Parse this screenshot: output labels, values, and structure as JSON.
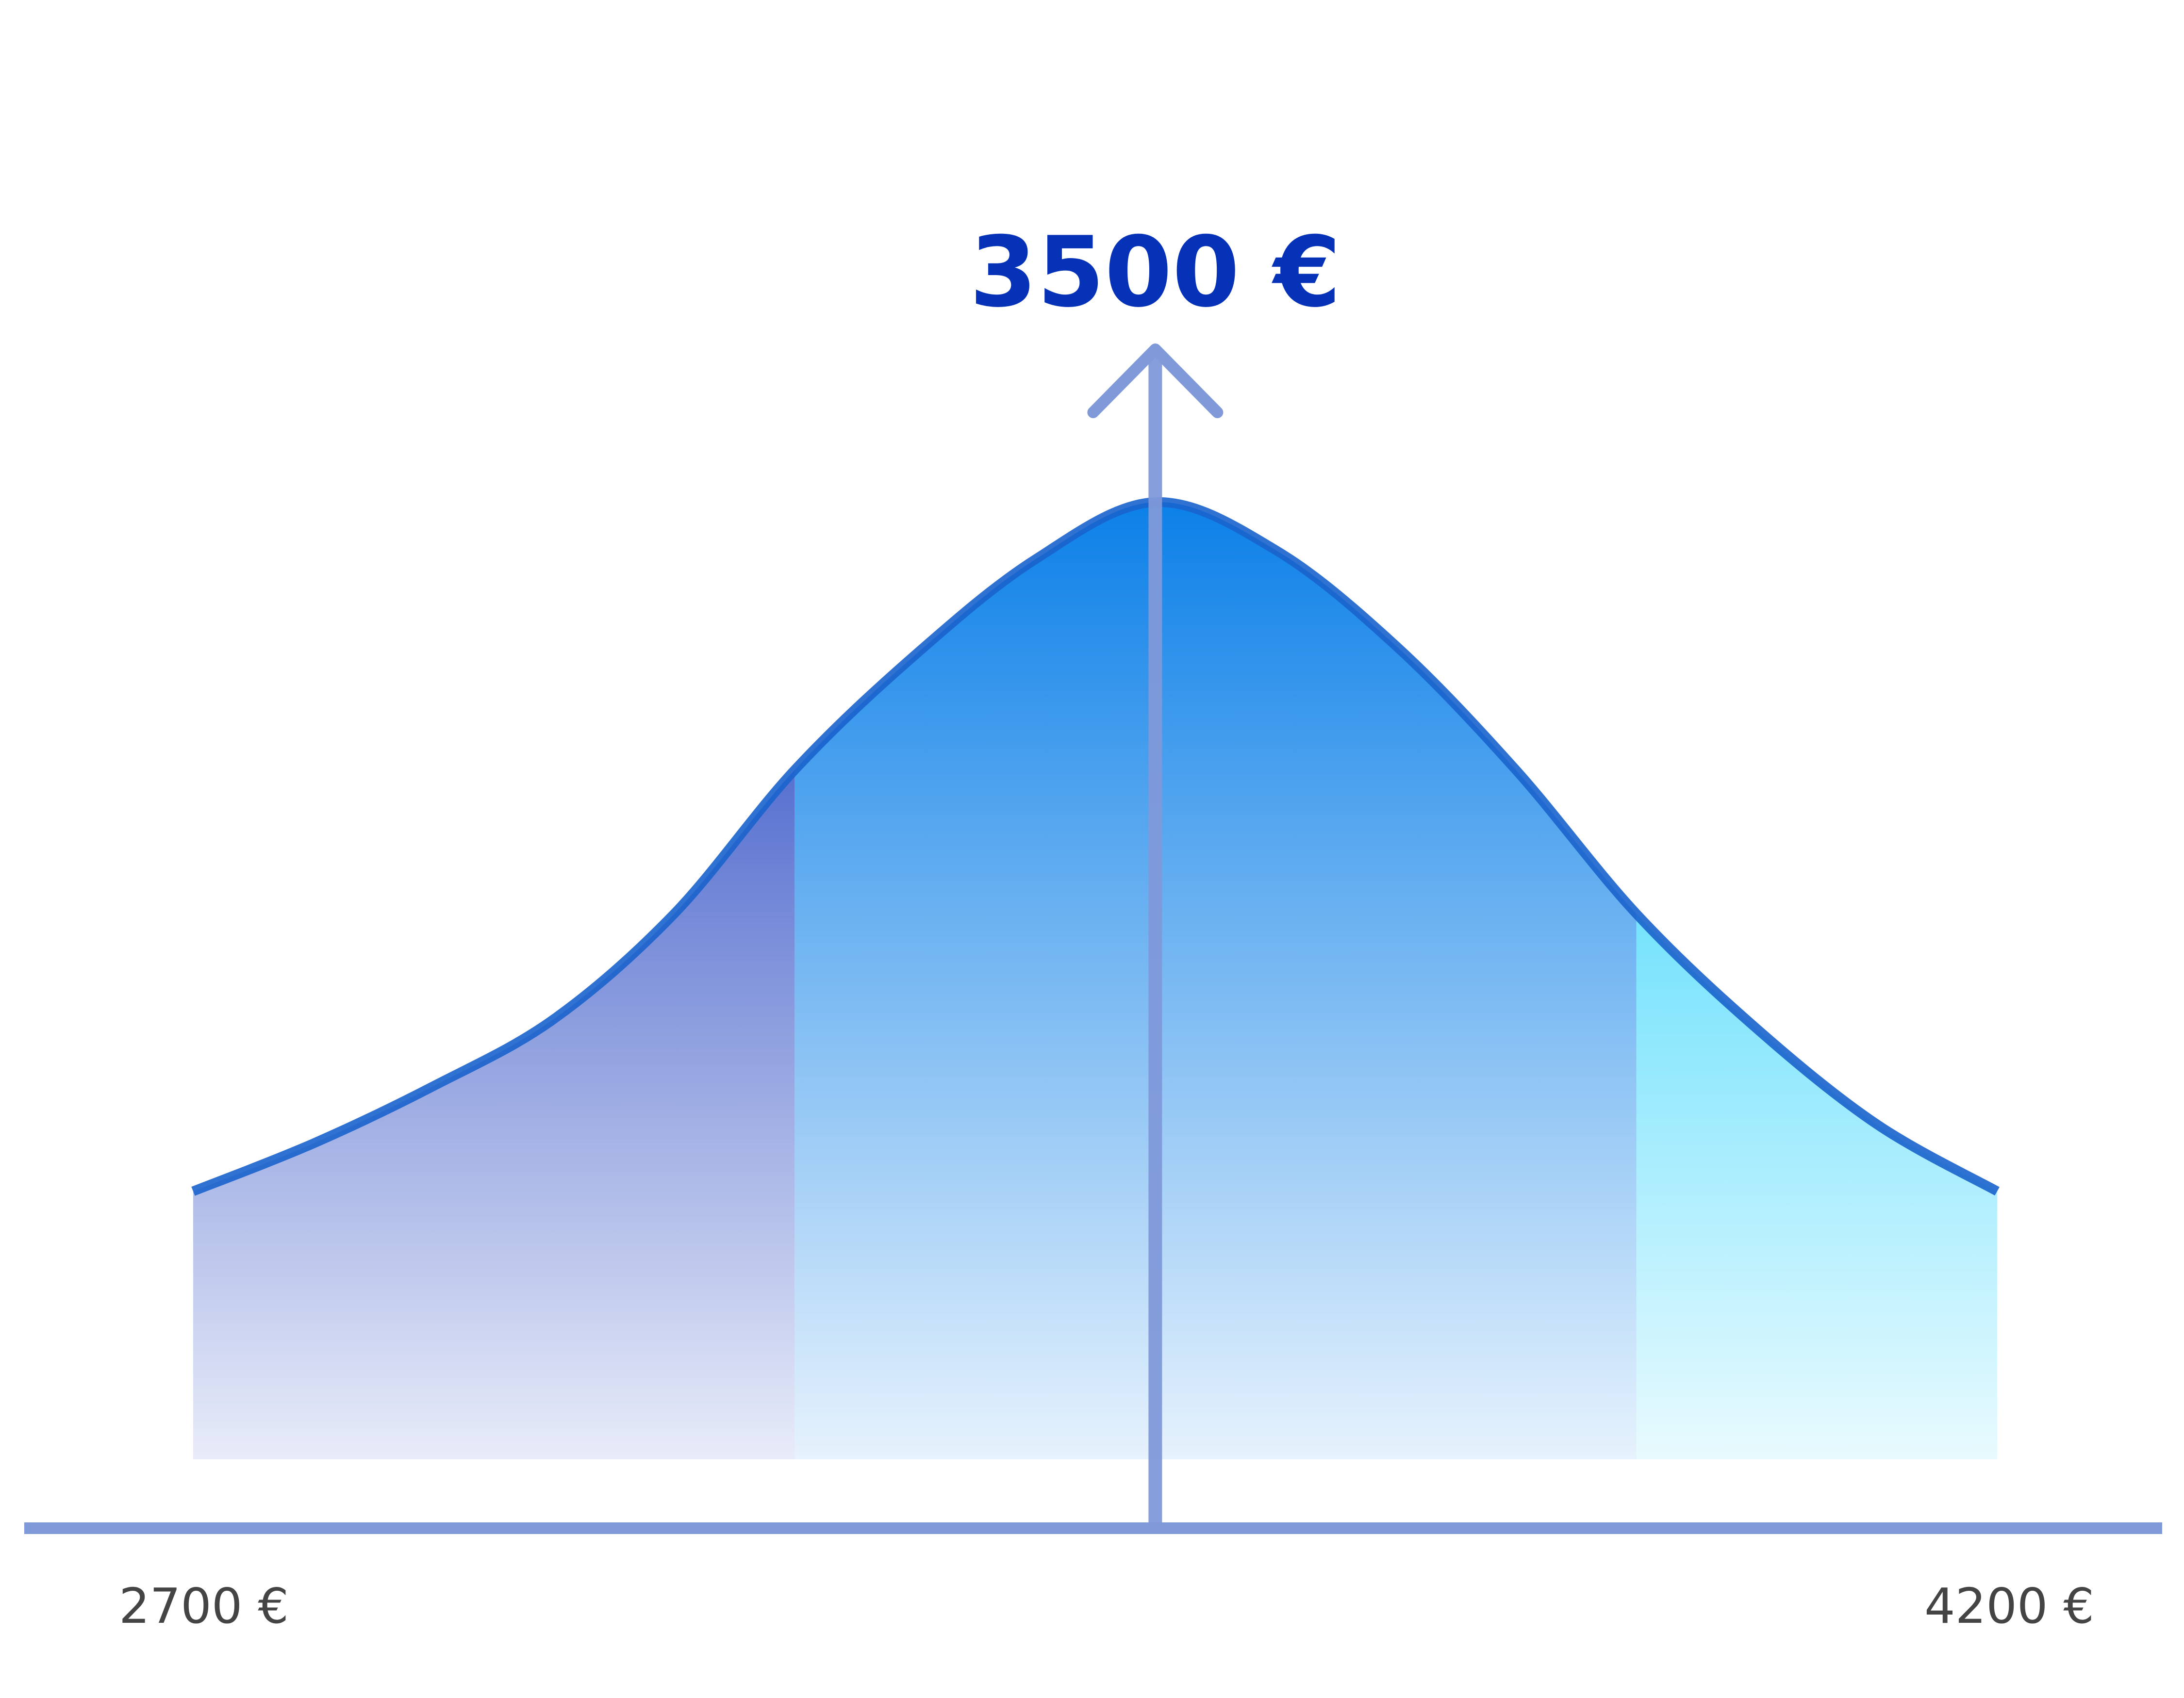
{
  "chart_data": {
    "type": "area",
    "title": "",
    "xlabel": "",
    "ylabel": "",
    "grid": false,
    "legend": "none",
    "median_label": "3500 €",
    "x_tick_labels": [
      "2700 €",
      "4200 €"
    ],
    "x": [
      2700,
      2800,
      2900,
      3000,
      3100,
      3200,
      3300,
      3400,
      3500,
      3600,
      3700,
      3800,
      3900,
      4000,
      4100,
      4200
    ],
    "values": [
      0.28,
      0.33,
      0.39,
      0.46,
      0.57,
      0.72,
      0.84,
      0.94,
      1.0,
      0.95,
      0.85,
      0.72,
      0.57,
      0.45,
      0.35,
      0.28
    ],
    "segments": [
      {
        "from": 2700,
        "to": 3200,
        "color": "#1d3fbf"
      },
      {
        "from": 3200,
        "to": 3900,
        "color": "#0a7fe8"
      },
      {
        "from": 3900,
        "to": 4200,
        "color": "#1cd0fb"
      }
    ],
    "colors": {
      "curve": "#1a63cc",
      "axis": "#8099d9",
      "median_label": "#0632b8",
      "tick_label": "#444444"
    }
  }
}
